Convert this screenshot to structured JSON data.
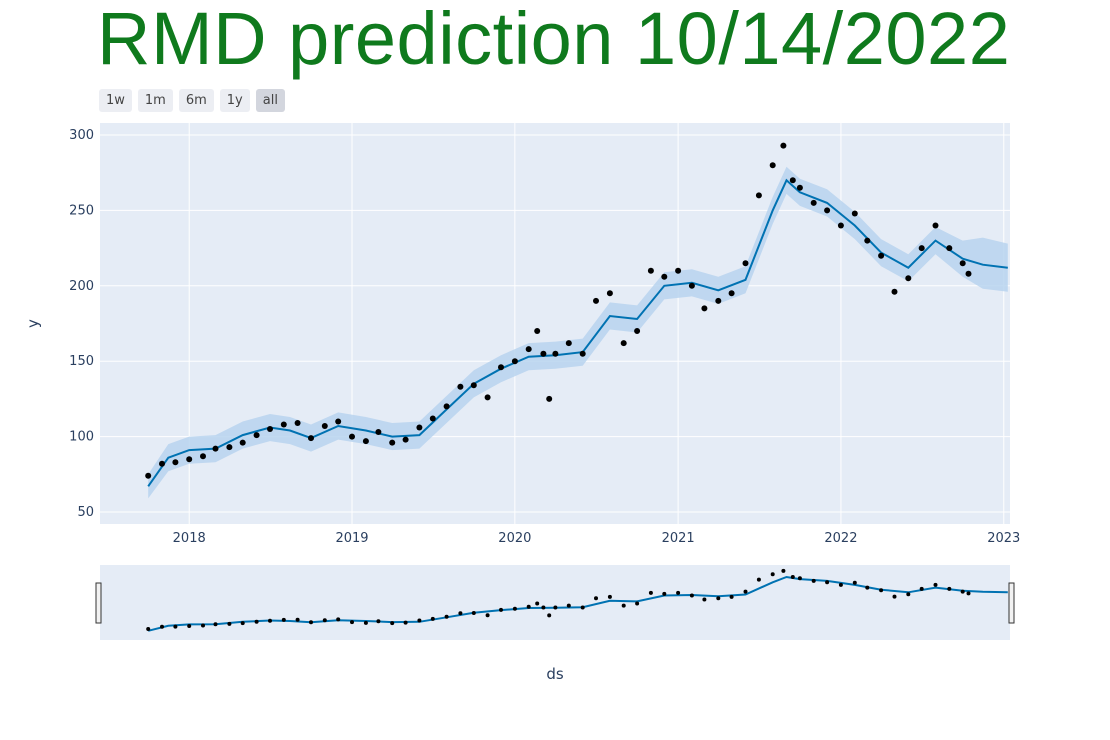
{
  "title": "RMD prediction 10/14/2022",
  "range_selector": {
    "buttons": [
      {
        "label": "1w",
        "active": false
      },
      {
        "label": "1m",
        "active": false
      },
      {
        "label": "6m",
        "active": false
      },
      {
        "label": "1y",
        "active": false
      },
      {
        "label": "all",
        "active": true
      }
    ]
  },
  "colors": {
    "title": "#0f7a1d",
    "plot_bg": "#e5ecf6",
    "grid": "#ffffff",
    "forecast_line": "#0072b2",
    "uncertainty_band": "#b8d4ee",
    "actual_points": "#000000"
  },
  "chart_data": {
    "type": "scatter",
    "xlabel": "ds",
    "ylabel": "y",
    "x_type": "date",
    "xlim": [
      "2017-06-15",
      "2023-01-15"
    ],
    "ylim": [
      42,
      308
    ],
    "x_ticks": [
      "2018",
      "2019",
      "2020",
      "2021",
      "2022",
      "2023"
    ],
    "y_ticks": [
      50,
      100,
      150,
      200,
      250,
      300
    ],
    "grid": true,
    "legend": "none",
    "rangeslider": true,
    "series": [
      {
        "kind": "actual",
        "style": "markers",
        "x": [
          "2017-10-01",
          "2017-11-01",
          "2017-12-01",
          "2018-01-01",
          "2018-02-01",
          "2018-03-01",
          "2018-04-01",
          "2018-05-01",
          "2018-06-01",
          "2018-07-01",
          "2018-08-01",
          "2018-09-01",
          "2018-10-01",
          "2018-11-01",
          "2018-12-01",
          "2019-01-01",
          "2019-02-01",
          "2019-03-01",
          "2019-04-01",
          "2019-05-01",
          "2019-06-01",
          "2019-07-01",
          "2019-08-01",
          "2019-09-01",
          "2019-10-01",
          "2019-11-01",
          "2019-12-01",
          "2020-01-01",
          "2020-02-01",
          "2020-02-20",
          "2020-03-05",
          "2020-03-18",
          "2020-04-01",
          "2020-05-01",
          "2020-06-01",
          "2020-07-01",
          "2020-08-01",
          "2020-09-01",
          "2020-10-01",
          "2020-11-01",
          "2020-12-01",
          "2021-01-01",
          "2021-02-01",
          "2021-03-01",
          "2021-04-01",
          "2021-05-01",
          "2021-06-01",
          "2021-07-01",
          "2021-08-01",
          "2021-08-25",
          "2021-09-15",
          "2021-10-01",
          "2021-11-01",
          "2021-12-01",
          "2022-01-01",
          "2022-02-01",
          "2022-03-01",
          "2022-04-01",
          "2022-05-01",
          "2022-06-01",
          "2022-07-01",
          "2022-08-01",
          "2022-09-01",
          "2022-10-01",
          "2022-10-14"
        ],
        "y": [
          74,
          82,
          83,
          85,
          87,
          92,
          93,
          96,
          101,
          105,
          108,
          109,
          99,
          107,
          110,
          100,
          97,
          103,
          96,
          98,
          106,
          112,
          120,
          133,
          134,
          126,
          146,
          150,
          158,
          170,
          155,
          125,
          155,
          162,
          155,
          190,
          195,
          162,
          170,
          210,
          206,
          210,
          200,
          185,
          190,
          195,
          215,
          260,
          280,
          293,
          270,
          265,
          255,
          250,
          240,
          248,
          230,
          220,
          196,
          205,
          225,
          240,
          225,
          215,
          208
        ]
      },
      {
        "kind": "forecast",
        "style": "line",
        "x": [
          "2017-10-01",
          "2017-11-15",
          "2018-01-01",
          "2018-03-01",
          "2018-05-01",
          "2018-07-01",
          "2018-08-15",
          "2018-10-01",
          "2018-12-01",
          "2019-02-01",
          "2019-04-01",
          "2019-06-01",
          "2019-08-01",
          "2019-10-01",
          "2019-12-01",
          "2020-02-01",
          "2020-04-01",
          "2020-06-01",
          "2020-08-01",
          "2020-10-01",
          "2020-12-01",
          "2021-02-01",
          "2021-04-01",
          "2021-06-01",
          "2021-08-01",
          "2021-09-01",
          "2021-10-01",
          "2021-12-01",
          "2022-02-01",
          "2022-04-01",
          "2022-06-01",
          "2022-08-01",
          "2022-10-01",
          "2022-11-15",
          "2023-01-10"
        ],
        "y": [
          67,
          86,
          91,
          92,
          101,
          106,
          104,
          99,
          107,
          104,
          100,
          101,
          118,
          135,
          145,
          153,
          154,
          156,
          180,
          178,
          200,
          202,
          197,
          204,
          250,
          270,
          262,
          255,
          240,
          222,
          212,
          230,
          218,
          214,
          212
        ]
      },
      {
        "kind": "uncertainty_upper",
        "style": "band",
        "x": [
          "2017-10-01",
          "2017-11-15",
          "2018-01-01",
          "2018-03-01",
          "2018-05-01",
          "2018-07-01",
          "2018-08-15",
          "2018-10-01",
          "2018-12-01",
          "2019-02-01",
          "2019-04-01",
          "2019-06-01",
          "2019-08-01",
          "2019-10-01",
          "2019-12-01",
          "2020-02-01",
          "2020-04-01",
          "2020-06-01",
          "2020-08-01",
          "2020-10-01",
          "2020-12-01",
          "2021-02-01",
          "2021-04-01",
          "2021-06-01",
          "2021-08-01",
          "2021-09-01",
          "2021-10-01",
          "2021-12-01",
          "2022-02-01",
          "2022-04-01",
          "2022-06-01",
          "2022-08-01",
          "2022-10-01",
          "2022-11-15",
          "2023-01-10"
        ],
        "y": [
          75,
          95,
          100,
          101,
          110,
          115,
          113,
          108,
          116,
          113,
          109,
          110,
          127,
          144,
          154,
          162,
          163,
          165,
          189,
          187,
          209,
          211,
          206,
          213,
          259,
          279,
          271,
          264,
          249,
          231,
          221,
          239,
          230,
          232,
          228
        ]
      },
      {
        "kind": "uncertainty_lower",
        "style": "band",
        "x": [
          "2017-10-01",
          "2017-11-15",
          "2018-01-01",
          "2018-03-01",
          "2018-05-01",
          "2018-07-01",
          "2018-08-15",
          "2018-10-01",
          "2018-12-01",
          "2019-02-01",
          "2019-04-01",
          "2019-06-01",
          "2019-08-01",
          "2019-10-01",
          "2019-12-01",
          "2020-02-01",
          "2020-04-01",
          "2020-06-01",
          "2020-08-01",
          "2020-10-01",
          "2020-12-01",
          "2021-02-01",
          "2021-04-01",
          "2021-06-01",
          "2021-08-01",
          "2021-09-01",
          "2021-10-01",
          "2021-12-01",
          "2022-02-01",
          "2022-04-01",
          "2022-06-01",
          "2022-08-01",
          "2022-10-01",
          "2022-11-15",
          "2023-01-10"
        ],
        "y": [
          59,
          77,
          82,
          83,
          92,
          97,
          95,
          90,
          98,
          95,
          91,
          92,
          109,
          126,
          136,
          144,
          145,
          147,
          171,
          169,
          191,
          193,
          188,
          195,
          241,
          261,
          253,
          246,
          231,
          213,
          203,
          221,
          206,
          198,
          196
        ]
      }
    ]
  }
}
